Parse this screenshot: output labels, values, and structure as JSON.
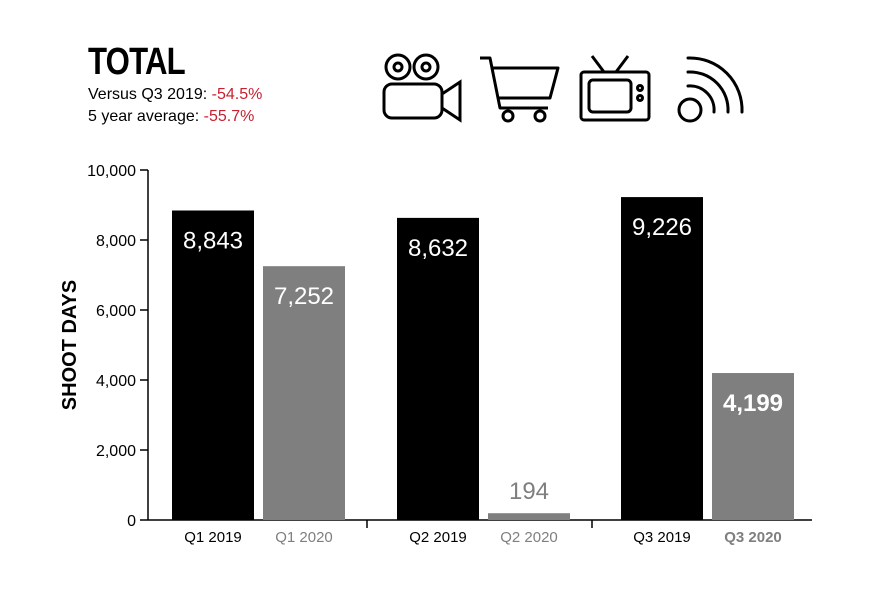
{
  "header": {
    "title": "TOTAL",
    "stat1_label": "Versus Q3 2019: ",
    "stat1_value": "-54.5%",
    "stat2_label": "5 year average: ",
    "stat2_value": "-55.7%"
  },
  "icons": [
    "movie-camera-icon",
    "shopping-cart-icon",
    "television-icon",
    "broadcast-signal-icon"
  ],
  "colors": {
    "series_2019": "#000000",
    "series_2020": "#7f7f7f",
    "negative": "#c8202f",
    "axis": "#000000"
  },
  "chart_data": {
    "type": "bar",
    "title": "",
    "xlabel": "",
    "ylabel": "SHOOT DAYS",
    "ylim": [
      0,
      10000
    ],
    "yticks": [
      "0",
      "2,000",
      "4,000",
      "6,000",
      "8,000",
      "10,000"
    ],
    "grid": false,
    "legend": "none",
    "groups": [
      {
        "bars": [
          {
            "label": "Q1 2019",
            "value": 8843,
            "display": "8,843",
            "series": "2019",
            "emphasis": false
          },
          {
            "label": "Q1 2020",
            "value": 7252,
            "display": "7,252",
            "series": "2020",
            "emphasis": false
          }
        ]
      },
      {
        "bars": [
          {
            "label": "Q2 2019",
            "value": 8632,
            "display": "8,632",
            "series": "2019",
            "emphasis": false
          },
          {
            "label": "Q2 2020",
            "value": 194,
            "display": "194",
            "series": "2020",
            "emphasis": false
          }
        ]
      },
      {
        "bars": [
          {
            "label": "Q3 2019",
            "value": 9226,
            "display": "9,226",
            "series": "2019",
            "emphasis": false
          },
          {
            "label": "Q3 2020",
            "value": 4199,
            "display": "4,199",
            "series": "2020",
            "emphasis": true
          }
        ]
      }
    ]
  }
}
